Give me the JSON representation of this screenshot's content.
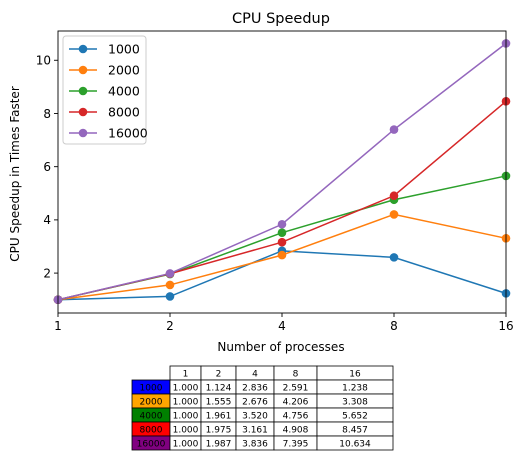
{
  "chart_data": {
    "type": "line",
    "title": "CPU Speedup",
    "xlabel": "Number of processes",
    "ylabel": "CPU Speedup in Times Faster",
    "x": [
      1,
      2,
      4,
      8,
      16
    ],
    "x_tick_labels": [
      "1",
      "2",
      "4",
      "8",
      "16"
    ],
    "x_scale": "log2",
    "xlim": [
      1,
      16
    ],
    "ylim": [
      0.5,
      11.1
    ],
    "y_ticks": [
      2,
      4,
      6,
      8,
      10
    ],
    "y_tick_labels": [
      "2",
      "4",
      "6",
      "8",
      "10"
    ],
    "grid": false,
    "legend_placement": "top-left",
    "series": [
      {
        "name": "1000",
        "color": "#1f77b4",
        "values": [
          1.0,
          1.124,
          2.836,
          2.591,
          1.238
        ]
      },
      {
        "name": "2000",
        "color": "#ff7f0e",
        "values": [
          1.0,
          1.555,
          2.676,
          4.206,
          3.308
        ]
      },
      {
        "name": "4000",
        "color": "#2ca02c",
        "values": [
          1.0,
          1.961,
          3.52,
          4.756,
          5.652
        ]
      },
      {
        "name": "8000",
        "color": "#d62728",
        "values": [
          1.0,
          1.975,
          3.161,
          4.908,
          8.457
        ]
      },
      {
        "name": "16000",
        "color": "#9467bd",
        "values": [
          1.0,
          1.987,
          3.836,
          7.395,
          10.634
        ]
      }
    ],
    "table": {
      "col_labels": [
        "1",
        "2",
        "4",
        "8",
        "16"
      ],
      "rows": [
        {
          "label": "1000",
          "label_color": "#0000ff",
          "cells": [
            "1.000",
            "1.124",
            "2.836",
            "2.591",
            "1.238"
          ]
        },
        {
          "label": "2000",
          "label_color": "#ffa500",
          "cells": [
            "1.000",
            "1.555",
            "2.676",
            "4.206",
            "3.308"
          ]
        },
        {
          "label": "4000",
          "label_color": "#008000",
          "cells": [
            "1.000",
            "1.961",
            "3.520",
            "4.756",
            "5.652"
          ]
        },
        {
          "label": "8000",
          "label_color": "#ff0000",
          "cells": [
            "1.000",
            "1.975",
            "3.161",
            "4.908",
            "8.457"
          ]
        },
        {
          "label": "16000",
          "label_color": "#800080",
          "cells": [
            "1.000",
            "1.987",
            "3.836",
            "7.395",
            "10.634"
          ]
        }
      ]
    }
  }
}
